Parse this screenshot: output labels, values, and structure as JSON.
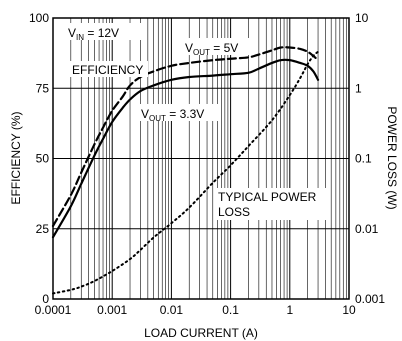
{
  "chart_data": {
    "type": "line",
    "x_axis": {
      "label": "LOAD CURRENT (A)",
      "scale": "log",
      "range": [
        0.0001,
        10
      ],
      "ticks": [
        "0.0001",
        "0.001",
        "0.01",
        "0.1",
        "1",
        "10"
      ]
    },
    "y_axis_left": {
      "label": "EFFICIENCY (%)",
      "scale": "linear",
      "range": [
        0,
        100
      ],
      "ticks": [
        "0",
        "25",
        "50",
        "75",
        "100"
      ]
    },
    "y_axis_right": {
      "label": "POWER LOSS (W)",
      "scale": "log",
      "range": [
        0.001,
        10
      ],
      "ticks": [
        "0.001",
        "0.01",
        "0.1",
        "1",
        "10"
      ]
    },
    "grid": true,
    "annotations": {
      "vin": {
        "main": "V",
        "sub": "IN",
        "rest": " = 12V"
      },
      "efficiency": "EFFICIENCY",
      "vout5": {
        "main": "V",
        "sub": "OUT",
        "rest": " = 5V"
      },
      "vout33": {
        "main": "V",
        "sub": "OUT",
        "rest": " = 3.3V"
      },
      "power_loss_line1": "TYPICAL POWER",
      "power_loss_line2": "LOSS"
    },
    "series": [
      {
        "name": "VOUT = 5V",
        "axis": "left",
        "style": "dashed",
        "x": [
          0.0001,
          0.0002,
          0.0003,
          0.0005,
          0.0007,
          0.001,
          0.0015,
          0.002,
          0.003,
          0.005,
          0.01,
          0.02,
          0.05,
          0.1,
          0.2,
          0.3,
          0.5,
          0.7,
          1,
          1.5,
          2,
          2.5,
          3
        ],
        "y": [
          26,
          37,
          45,
          55,
          61,
          67,
          72,
          76,
          79,
          81,
          83,
          84,
          85,
          85.5,
          86,
          87,
          88.5,
          89.5,
          89.5,
          89,
          88,
          86.5,
          85
        ]
      },
      {
        "name": "VOUT = 3.3V",
        "axis": "left",
        "style": "solid",
        "x": [
          0.0001,
          0.0002,
          0.0003,
          0.0005,
          0.0007,
          0.001,
          0.0015,
          0.002,
          0.003,
          0.005,
          0.01,
          0.02,
          0.05,
          0.1,
          0.2,
          0.3,
          0.5,
          0.7,
          1,
          1.5,
          2,
          2.5,
          3
        ],
        "y": [
          22,
          33,
          41,
          51,
          57,
          63,
          68,
          71,
          74,
          76,
          78,
          79,
          79.5,
          80,
          80.5,
          82,
          84,
          85,
          85,
          84,
          83,
          81,
          78
        ]
      },
      {
        "name": "TYPICAL POWER LOSS",
        "axis": "right",
        "style": "dotted",
        "x": [
          0.0001,
          0.0002,
          0.0003,
          0.0005,
          0.001,
          0.002,
          0.003,
          0.005,
          0.01,
          0.02,
          0.05,
          0.1,
          0.2,
          0.5,
          1,
          1.5,
          2,
          2.5,
          3
        ],
        "y": [
          0.0012,
          0.00135,
          0.0015,
          0.0018,
          0.0025,
          0.0037,
          0.005,
          0.0075,
          0.012,
          0.02,
          0.045,
          0.08,
          0.15,
          0.35,
          0.8,
          1.4,
          2.2,
          2.9,
          3.3
        ]
      }
    ]
  }
}
